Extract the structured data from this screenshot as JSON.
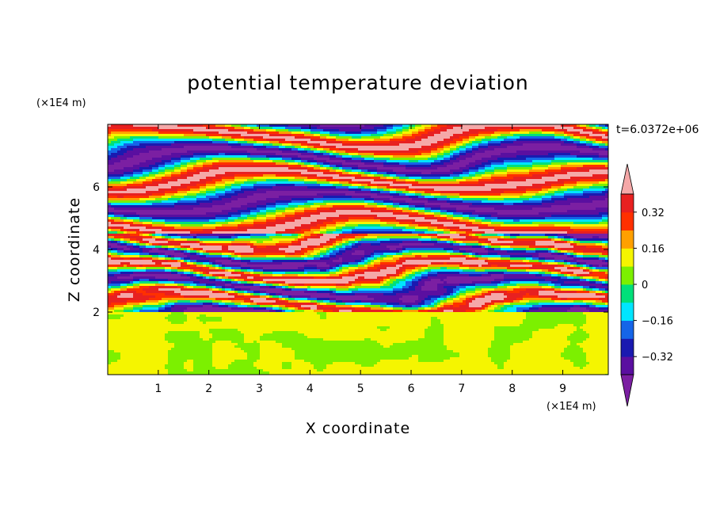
{
  "chart_data": {
    "type": "heatmap",
    "title": "potential temperature deviation",
    "xlabel": "X coordinate",
    "ylabel": "Z coordinate",
    "x_unit": "(×1E4 m)",
    "y_unit": "(×1E4 m)",
    "time_label": "t=6.0372e+06",
    "xlim": [
      0,
      9.9
    ],
    "ylim": [
      0,
      8.0
    ],
    "x_ticks": [
      "1",
      "2",
      "3",
      "4",
      "5",
      "6",
      "7",
      "8",
      "9"
    ],
    "y_ticks": [
      "2",
      "4",
      "6"
    ],
    "grid": false,
    "colorbar": {
      "labels": [
        "0.32",
        "0.16",
        "0",
        "−0.16",
        "−0.32"
      ],
      "label_values": [
        0.32,
        0.16,
        0,
        -0.16,
        -0.32
      ],
      "levels": [
        -0.4,
        -0.32,
        -0.24,
        -0.16,
        -0.08,
        0,
        0.08,
        0.16,
        0.24,
        0.32,
        0.4
      ],
      "colors": [
        "#7b1fa2",
        "#5a0fa0",
        "#1a1ab0",
        "#1565e8",
        "#00e5ff",
        "#00e07a",
        "#7cf000",
        "#f5f500",
        "#ffa000",
        "#ff3000",
        "#e82020",
        "#f5a8a8"
      ],
      "extend": "both"
    },
    "regions": [
      {
        "z_range": [
          0,
          2.0
        ],
        "description": "near-uniform lower layer",
        "dominant_values": [
          0.0,
          0.04
        ]
      },
      {
        "z_range": [
          2.0,
          4.5
        ],
        "description": "turbulent layer with mixed positive and negative anomalies",
        "dominant_values": [
          -0.4,
          0.4
        ]
      },
      {
        "z_range": [
          4.5,
          8.0
        ],
        "description": "alternating horizontal bands",
        "dominant_values": [
          -0.4,
          0.4
        ]
      }
    ]
  }
}
